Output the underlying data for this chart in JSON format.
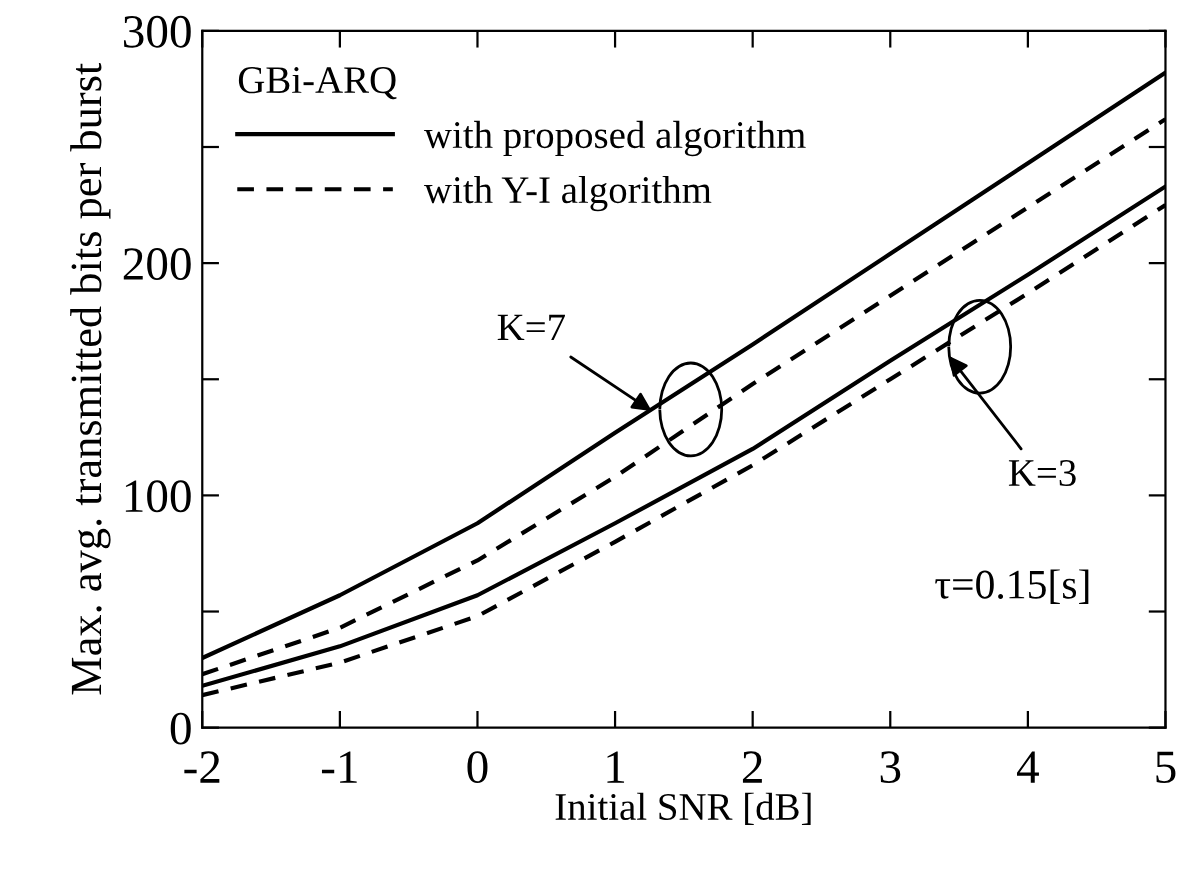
{
  "chart_data": {
    "type": "line",
    "xlabel": "Initial SNR [dB]",
    "ylabel": "Max. avg. transmitted bits per burst",
    "legend_title": "GBi-ARQ",
    "x": [
      -2,
      -1,
      0,
      1,
      2,
      3,
      4,
      5
    ],
    "series": [
      {
        "name": "with proposed algorithm",
        "color": "#000000",
        "line_style": "solid",
        "values": [
          30,
          57,
          88,
          127,
          165,
          204,
          243,
          282
        ]
      },
      {
        "name": "with Y-I algorithm",
        "color": "#000000",
        "line_style": "dashed",
        "values": [
          23,
          43,
          72,
          108,
          148,
          186,
          224,
          262
        ]
      },
      {
        "color": "#000000",
        "line_style": "solid",
        "values": [
          18,
          35,
          57,
          88,
          120,
          158,
          195,
          233
        ]
      },
      {
        "color": "#000000",
        "line_style": "dashed",
        "values": [
          14,
          28,
          48,
          80,
          113,
          150,
          187,
          225
        ]
      }
    ],
    "xlim": [
      -2,
      5
    ],
    "ylim": [
      0,
      300
    ],
    "xticks": [
      -2,
      -1,
      0,
      1,
      2,
      3,
      4,
      5
    ],
    "yticks": [
      0,
      {
        "value": 50,
        "label": null
      },
      100,
      {
        "value": 150,
        "label": null
      },
      200,
      {
        "value": 250,
        "label": null
      },
      300
    ],
    "annotations": [
      {
        "text": "K=7",
        "x": 1.3,
        "y": 135
      },
      {
        "text": "K=3",
        "x": 3.4,
        "y": 162
      },
      "τ=0.15[s]"
    ],
    "legend": "top left",
    "grid": false
  }
}
